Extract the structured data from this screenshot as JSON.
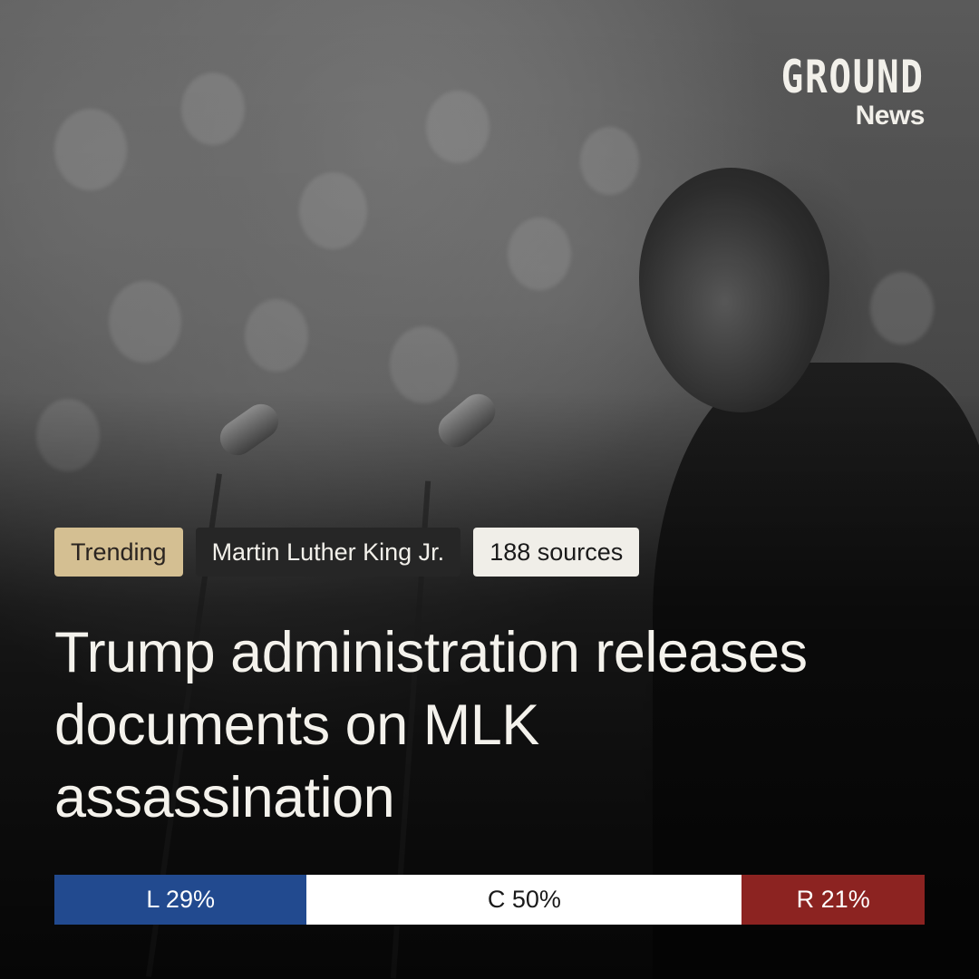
{
  "logo": {
    "wordmark": "GROUND",
    "sub": "News"
  },
  "tags": {
    "trending": "Trending",
    "topic": "Martin Luther King Jr.",
    "sources": "188 sources"
  },
  "headline": "Trump administration releases documents on MLK assassination",
  "bias": {
    "left": {
      "label": "L 29%",
      "share": 0.29,
      "color": "#224a8f"
    },
    "center": {
      "label": "C 50%",
      "share": 0.5,
      "color": "#ffffff"
    },
    "right": {
      "label": "R 21%",
      "share": 0.21,
      "color": "#8c2321"
    }
  },
  "image": {
    "subject": "black-and-white photo of a speaker at microphones before a crowd"
  }
}
